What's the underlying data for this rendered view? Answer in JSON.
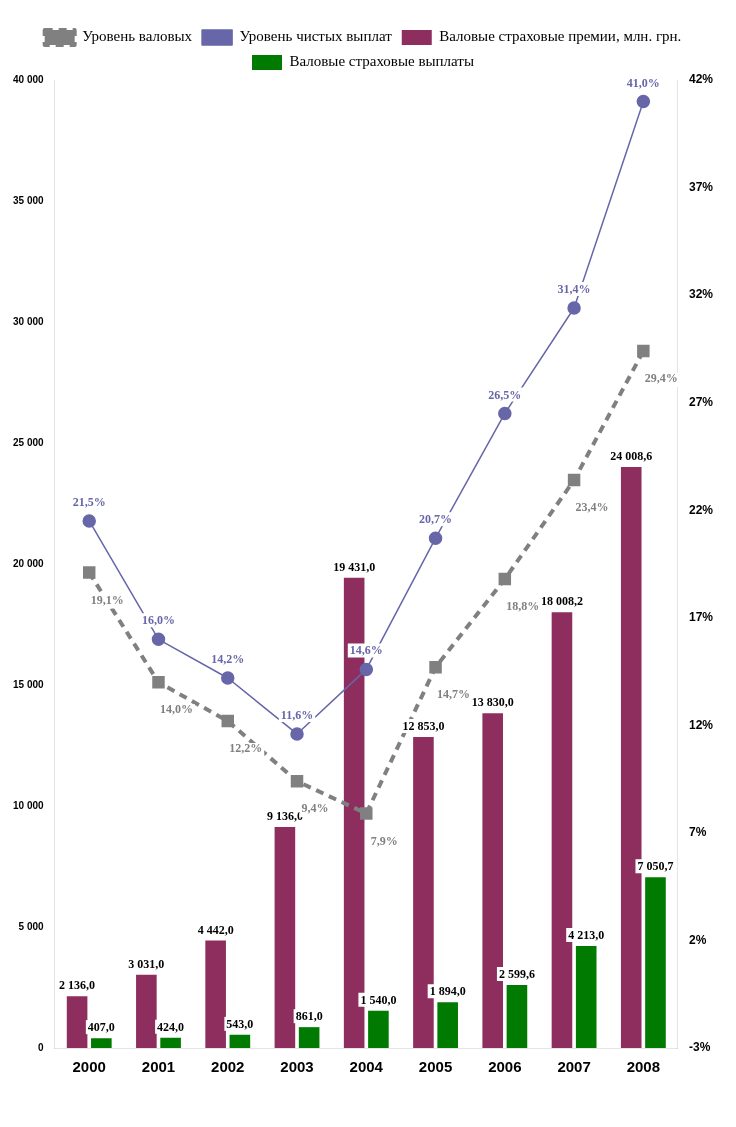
{
  "chart_data": {
    "type": "bar",
    "categories": [
      "2000",
      "2001",
      "2002",
      "2003",
      "2004",
      "2005",
      "2006",
      "2007",
      "2008"
    ],
    "series": [
      {
        "name": "Валовые страховые премии, млн. грн.",
        "color": "#8e2e5e",
        "values": [
          2136.0,
          3031.0,
          4442.0,
          9136.0,
          19431.0,
          12853.0,
          13830.0,
          18008.2,
          24008.6
        ],
        "value_labels": [
          "2 136,0",
          "3 031,0",
          "4 442,0",
          "9 136,0",
          "19 431,0",
          "12 853,0",
          "13 830,0",
          "18 008,2",
          "24 008,6"
        ]
      },
      {
        "name": "Валовые страховые выплаты",
        "color": "#007a00",
        "values": [
          407.0,
          424.0,
          543.0,
          861.0,
          1540.0,
          1894.0,
          2599.6,
          4213.0,
          7050.7
        ],
        "value_labels": [
          "407,0",
          "424,0",
          "543,0",
          "861,0",
          "1 540,0",
          "1 894,0",
          "2 599,6",
          "4 213,0",
          "7 050,7"
        ]
      },
      {
        "name": "Уровень валовых",
        "type": "line",
        "axis": "y2",
        "color": "#808080",
        "marker": "square",
        "line_style": "dashed",
        "values": [
          19.1,
          14.0,
          12.2,
          9.4,
          7.9,
          14.7,
          18.8,
          23.4,
          29.4
        ],
        "value_labels": [
          "19,1%",
          "14,0%",
          "12,2%",
          "9,4%",
          "7,9%",
          "14,7%",
          "18,8%",
          "23,4%",
          "29,4%"
        ]
      },
      {
        "name": "Уровень чистых выплат",
        "type": "line",
        "axis": "y2",
        "color": "#6666a8",
        "marker": "circle",
        "line_style": "solid",
        "values": [
          21.5,
          16.0,
          14.2,
          11.6,
          14.6,
          20.7,
          26.5,
          31.4,
          41.0
        ],
        "value_labels": [
          "21,5%",
          "16,0%",
          "14,2%",
          "11,6%",
          "14,6%",
          "20,7%",
          "26,5%",
          "31,4%",
          "41,0%"
        ]
      }
    ],
    "ylim": [
      0,
      40000
    ],
    "yticks": [
      0,
      {
        "value": 5000,
        "label": "5 000"
      },
      {
        "value": 10000,
        "label": "10 000"
      },
      {
        "value": 15000,
        "label": "15 000"
      },
      {
        "value": 20000,
        "label": "20 000"
      },
      {
        "value": 25000,
        "label": "25 000"
      },
      {
        "value": 30000,
        "label": "30 000"
      },
      {
        "value": 35000,
        "label": "35 000"
      },
      {
        "value": 40000,
        "label": "40 000"
      }
    ],
    "y2lim": [
      -3,
      42
    ],
    "y2ticks": [
      {
        "value": -3,
        "label": "-3%"
      },
      {
        "value": 2,
        "label": "2%"
      },
      {
        "value": 7,
        "label": "7%"
      },
      {
        "value": 12,
        "label": "12%"
      },
      {
        "value": 17,
        "label": "17%"
      },
      {
        "value": 22,
        "label": "22%"
      },
      {
        "value": 27,
        "label": "27%"
      },
      {
        "value": 32,
        "label": "32%"
      },
      {
        "value": 37,
        "label": "37%"
      },
      {
        "value": 42,
        "label": "42%"
      }
    ],
    "grid": false,
    "legend": "top"
  }
}
